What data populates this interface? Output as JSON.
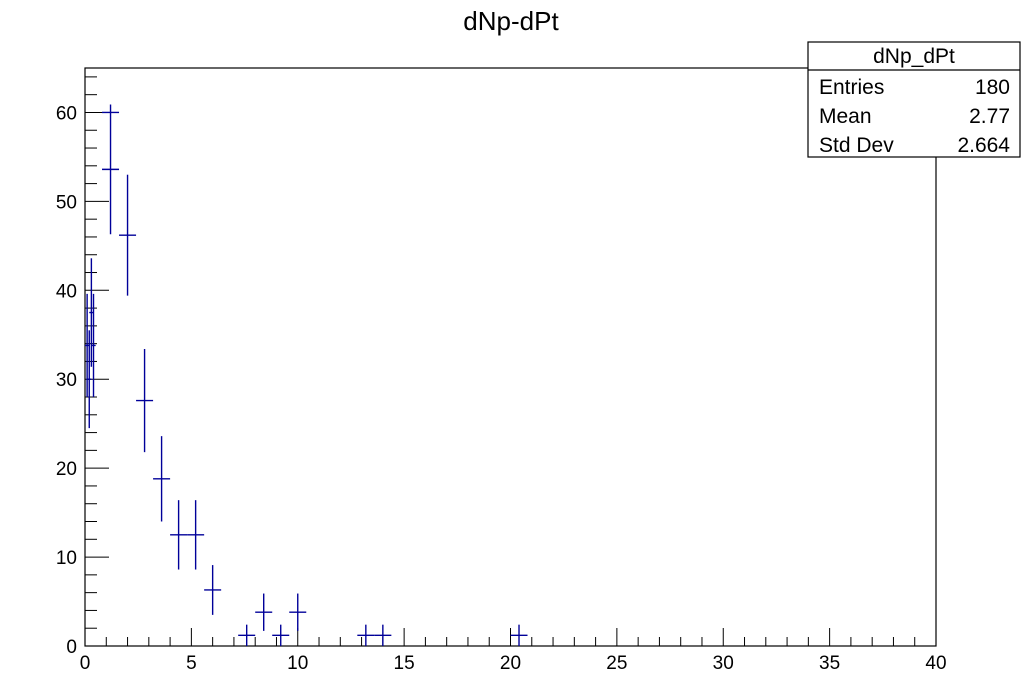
{
  "chart_data": {
    "type": "scatter",
    "title": "dNp-dPt",
    "xlim": [
      0,
      40
    ],
    "ylim": [
      0,
      65
    ],
    "x_ticks": [
      0,
      5,
      10,
      15,
      20,
      25,
      30,
      35,
      40
    ],
    "x_tick_labels": [
      "0",
      "5",
      "10",
      "15",
      "20",
      "25",
      "30",
      "35",
      "40"
    ],
    "y_ticks": [
      0,
      10,
      20,
      30,
      40,
      50,
      60
    ],
    "y_tick_labels": [
      "0",
      "10",
      "20",
      "30",
      "40",
      "50",
      "60"
    ],
    "grid": false,
    "marker_color": "#000099",
    "series": [
      {
        "points": [
          {
            "x": 0.1,
            "y": 33.8,
            "xerr": 0.1,
            "yerr": 5.8
          },
          {
            "x": 0.2,
            "y": 30.0,
            "xerr": 0.1,
            "yerr": 5.5
          },
          {
            "x": 0.3,
            "y": 37.5,
            "xerr": 0.1,
            "yerr": 6.1
          },
          {
            "x": 0.4,
            "y": 33.8,
            "xerr": 0.1,
            "yerr": 5.8
          },
          {
            "x": 1.2,
            "y": 53.6,
            "xerr": 0.4,
            "yerr": 7.3
          },
          {
            "x": 2.0,
            "y": 46.2,
            "xerr": 0.4,
            "yerr": 6.8
          },
          {
            "x": 2.8,
            "y": 27.6,
            "xerr": 0.4,
            "yerr": 5.8
          },
          {
            "x": 3.6,
            "y": 18.8,
            "xerr": 0.4,
            "yerr": 4.8
          },
          {
            "x": 4.4,
            "y": 12.5,
            "xerr": 0.4,
            "yerr": 3.9
          },
          {
            "x": 5.2,
            "y": 12.5,
            "xerr": 0.4,
            "yerr": 3.9
          },
          {
            "x": 6.0,
            "y": 6.3,
            "xerr": 0.4,
            "yerr": 2.8
          },
          {
            "x": 7.6,
            "y": 1.2,
            "xerr": 0.4,
            "yerr": 1.2
          },
          {
            "x": 8.4,
            "y": 3.8,
            "xerr": 0.4,
            "yerr": 2.1
          },
          {
            "x": 9.2,
            "y": 1.2,
            "xerr": 0.4,
            "yerr": 1.2
          },
          {
            "x": 10.0,
            "y": 3.8,
            "xerr": 0.4,
            "yerr": 2.1
          },
          {
            "x": 13.2,
            "y": 1.2,
            "xerr": 0.4,
            "yerr": 1.2
          },
          {
            "x": 14.0,
            "y": 1.2,
            "xerr": 0.4,
            "yerr": 1.2
          },
          {
            "x": 20.4,
            "y": 1.2,
            "xerr": 0.4,
            "yerr": 1.2
          }
        ]
      }
    ],
    "extra_top_tick_segment": [
      1.2,
      60.0
    ]
  },
  "stats_box": {
    "name": "dNp_dPt",
    "rows": [
      {
        "label": "Entries",
        "value": "180"
      },
      {
        "label": "Mean",
        "value": "2.77"
      },
      {
        "label": "Std Dev",
        "value": "2.664"
      }
    ]
  }
}
